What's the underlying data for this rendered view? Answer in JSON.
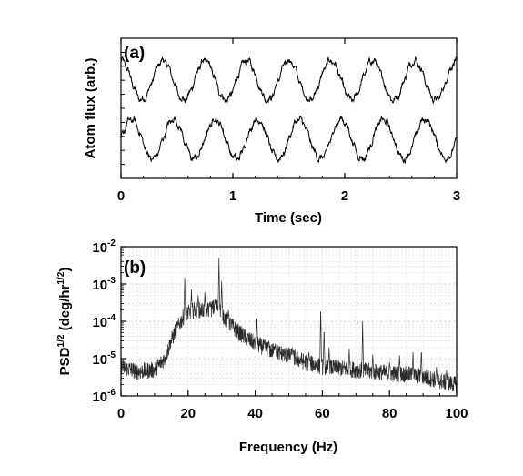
{
  "chart_data": [
    {
      "panel_label": "(a)",
      "type": "line",
      "xlabel": "Time (sec)",
      "ylabel": "Atom flux (arb.)",
      "xlim": [
        0,
        3
      ],
      "xticks": [
        "0",
        "1",
        "2",
        "3"
      ],
      "ylim": [
        0,
        1
      ],
      "yticks_labeled": false,
      "grid": false,
      "series": [
        {
          "phase_cycles": 0.25,
          "amplitude": 0.14,
          "offset": 0.7,
          "period_sec": 0.375,
          "noise": 0.02
        },
        {
          "phase_cycles": 0.0,
          "amplitude": 0.14,
          "offset": 0.28,
          "period_sec": 0.375,
          "noise": 0.02
        }
      ]
    },
    {
      "panel_label": "(b)",
      "type": "line",
      "xlabel": "Frequency (Hz)",
      "ylabel_parts": {
        "base": "PSD",
        "exp1": "1/2",
        "mid": " (deg/hr",
        "exp2": "1/2",
        "end": ")"
      },
      "xlim": [
        0,
        100
      ],
      "xticks": [
        "0",
        "20",
        "40",
        "60",
        "80",
        "100"
      ],
      "yscale": "log",
      "ylim": [
        1e-06,
        0.01
      ],
      "ytick_labels": [
        {
          "base": "10",
          "exp": "-6"
        },
        {
          "base": "10",
          "exp": "-5"
        },
        {
          "base": "10",
          "exp": "-4"
        },
        {
          "base": "10",
          "exp": "-3"
        },
        {
          "base": "10",
          "exp": "-2"
        }
      ],
      "grid": true,
      "spectrum_shape": [
        [
          0,
          6e-06
        ],
        [
          5,
          4.5e-06
        ],
        [
          10,
          5e-06
        ],
        [
          13,
          1e-05
        ],
        [
          16,
          5e-05
        ],
        [
          19,
          0.00015
        ],
        [
          22,
          0.0002
        ],
        [
          26,
          0.0002
        ],
        [
          29,
          0.00025
        ],
        [
          31,
          0.00012
        ],
        [
          35,
          5e-05
        ],
        [
          40,
          2.5e-05
        ],
        [
          45,
          1.6e-05
        ],
        [
          50,
          1.2e-05
        ],
        [
          55,
          8e-06
        ],
        [
          60,
          6e-06
        ],
        [
          65,
          5.5e-06
        ],
        [
          70,
          5e-06
        ],
        [
          75,
          4.5e-06
        ],
        [
          80,
          4e-06
        ],
        [
          85,
          3.8e-06
        ],
        [
          90,
          3.3e-06
        ],
        [
          95,
          2.5e-06
        ],
        [
          100,
          2e-06
        ]
      ],
      "spectral_peaks": [
        [
          14.5,
          1.5e-05
        ],
        [
          17,
          6e-05
        ],
        [
          19,
          0.0015
        ],
        [
          21,
          0.0007
        ],
        [
          23,
          0.0005
        ],
        [
          25,
          0.0006
        ],
        [
          26.5,
          0.00035
        ],
        [
          28,
          0.0004
        ],
        [
          29.2,
          0.005
        ],
        [
          30,
          0.0012
        ],
        [
          32,
          0.0002
        ],
        [
          40.5,
          0.00015
        ],
        [
          44,
          3e-05
        ],
        [
          46,
          2.5e-05
        ],
        [
          51,
          2e-05
        ],
        [
          56,
          1.5e-05
        ],
        [
          59.5,
          0.0003
        ],
        [
          60.5,
          7e-05
        ],
        [
          62,
          2e-05
        ],
        [
          68,
          1.8e-05
        ],
        [
          72,
          0.0001
        ],
        [
          75,
          1.3e-05
        ],
        [
          80,
          8e-06
        ],
        [
          83,
          1.2e-05
        ],
        [
          87,
          1.5e-05
        ],
        [
          89.5,
          1.8e-05
        ],
        [
          94,
          6e-06
        ],
        [
          97,
          5e-06
        ]
      ]
    }
  ]
}
